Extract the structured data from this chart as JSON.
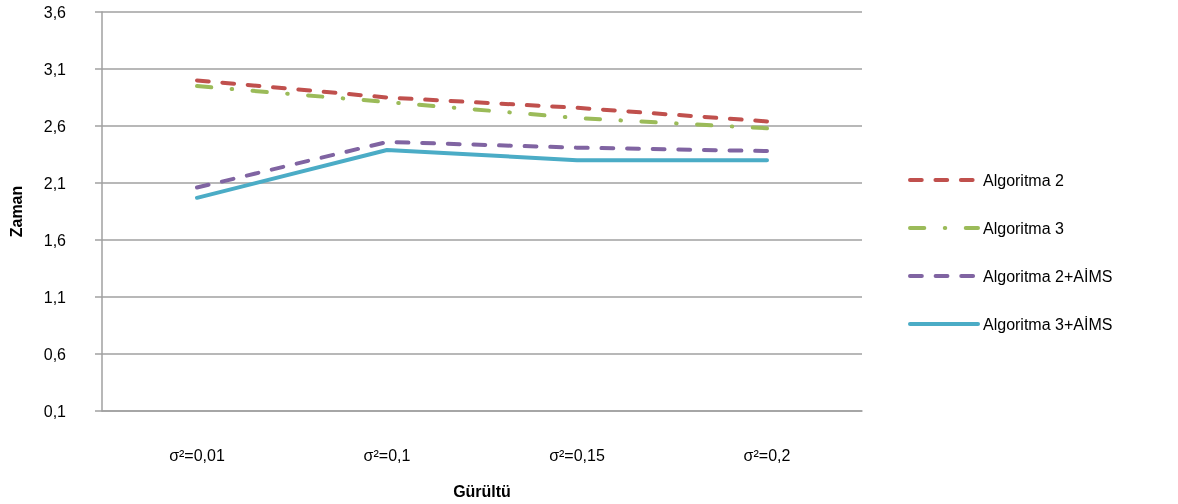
{
  "chart_data": {
    "type": "line",
    "xlabel": "Gürültü",
    "ylabel": "Zaman",
    "categories": [
      "σ²=0,01",
      "σ²=0,1",
      "σ²=0,15",
      "σ²=0,2"
    ],
    "series": [
      {
        "name": "Algoritma 2",
        "color": "#c0504d",
        "line_style": "dashed",
        "values": [
          3.0,
          2.85,
          2.76,
          2.64
        ]
      },
      {
        "name": "Algoritma 3",
        "color": "#9bbb59",
        "line_style": "dashdot",
        "values": [
          2.95,
          2.81,
          2.67,
          2.58
        ]
      },
      {
        "name": "Algoritma 2+AİMS",
        "color": "#8064a2",
        "line_style": "dashed",
        "values": [
          2.06,
          2.46,
          2.41,
          2.38
        ]
      },
      {
        "name": "Algoritma 3+AİMS",
        "color": "#4bacc6",
        "line_style": "solid",
        "values": [
          1.97,
          2.39,
          2.3,
          2.3
        ]
      }
    ],
    "ylim": [
      0.1,
      3.6
    ],
    "yticks": [
      {
        "value": 0.1,
        "label": "0,1"
      },
      {
        "value": 0.6,
        "label": "0,6"
      },
      {
        "value": 1.1,
        "label": "1,1"
      },
      {
        "value": 1.6,
        "label": "1,6"
      },
      {
        "value": 2.1,
        "label": "2,1"
      },
      {
        "value": 2.6,
        "label": "2,6"
      },
      {
        "value": 3.1,
        "label": "3,1"
      },
      {
        "value": 3.6,
        "label": "3,6"
      }
    ],
    "grid": "y",
    "legend": "right"
  }
}
